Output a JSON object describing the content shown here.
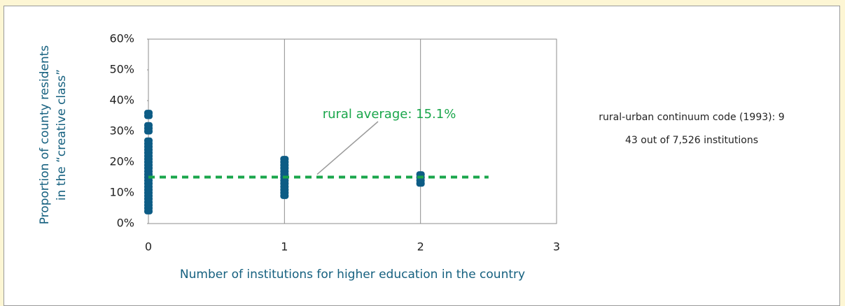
{
  "chart_data": {
    "type": "scatter",
    "x_label": "Number of institutions for higher education in the country",
    "y_label": [
      "Proportion of county residents",
      "in the “creative class”"
    ],
    "xlim": [
      0,
      3
    ],
    "xticks": [
      0,
      1,
      2,
      3
    ],
    "ylim": [
      0,
      60
    ],
    "yticks": [
      {
        "value": 0,
        "label": "0%"
      },
      {
        "value": 10,
        "label": "10%"
      },
      {
        "value": 20,
        "label": "20%"
      },
      {
        "value": 30,
        "label": "30%"
      },
      {
        "value": 40,
        "label": "40%"
      },
      {
        "value": 50,
        "label": "50%"
      },
      {
        "value": 60,
        "label": "60%"
      }
    ],
    "grid": true,
    "series": [
      {
        "color": "#0d5c85",
        "x": [
          0,
          0,
          0,
          0,
          0,
          0,
          0,
          0,
          0,
          0,
          0,
          0,
          0,
          0,
          0,
          0,
          0,
          0,
          0,
          0,
          0,
          0,
          0,
          0,
          0,
          0,
          0,
          0,
          0,
          1,
          1,
          1,
          1,
          1,
          1,
          1,
          1,
          1,
          1,
          1,
          1,
          1,
          2,
          2,
          2,
          2
        ],
        "y": [
          4,
          5,
          6,
          7,
          8,
          9,
          10,
          11,
          12,
          13,
          14,
          15,
          16,
          17,
          18,
          19,
          20,
          21,
          22,
          23,
          24,
          25,
          26,
          27,
          30,
          31,
          32,
          35,
          36,
          9,
          10,
          11,
          12,
          13,
          14,
          15,
          16,
          17,
          18,
          19,
          20,
          21,
          13,
          14,
          15,
          16
        ]
      }
    ],
    "reference_line": {
      "value": 15.1,
      "x_end": 2.5,
      "color": "#1aa64b",
      "label": "rural average: 15.1%"
    },
    "side_text": [
      "rural-urban continuum code (1993): 9",
      "43 out of 7,526 institutions"
    ]
  }
}
